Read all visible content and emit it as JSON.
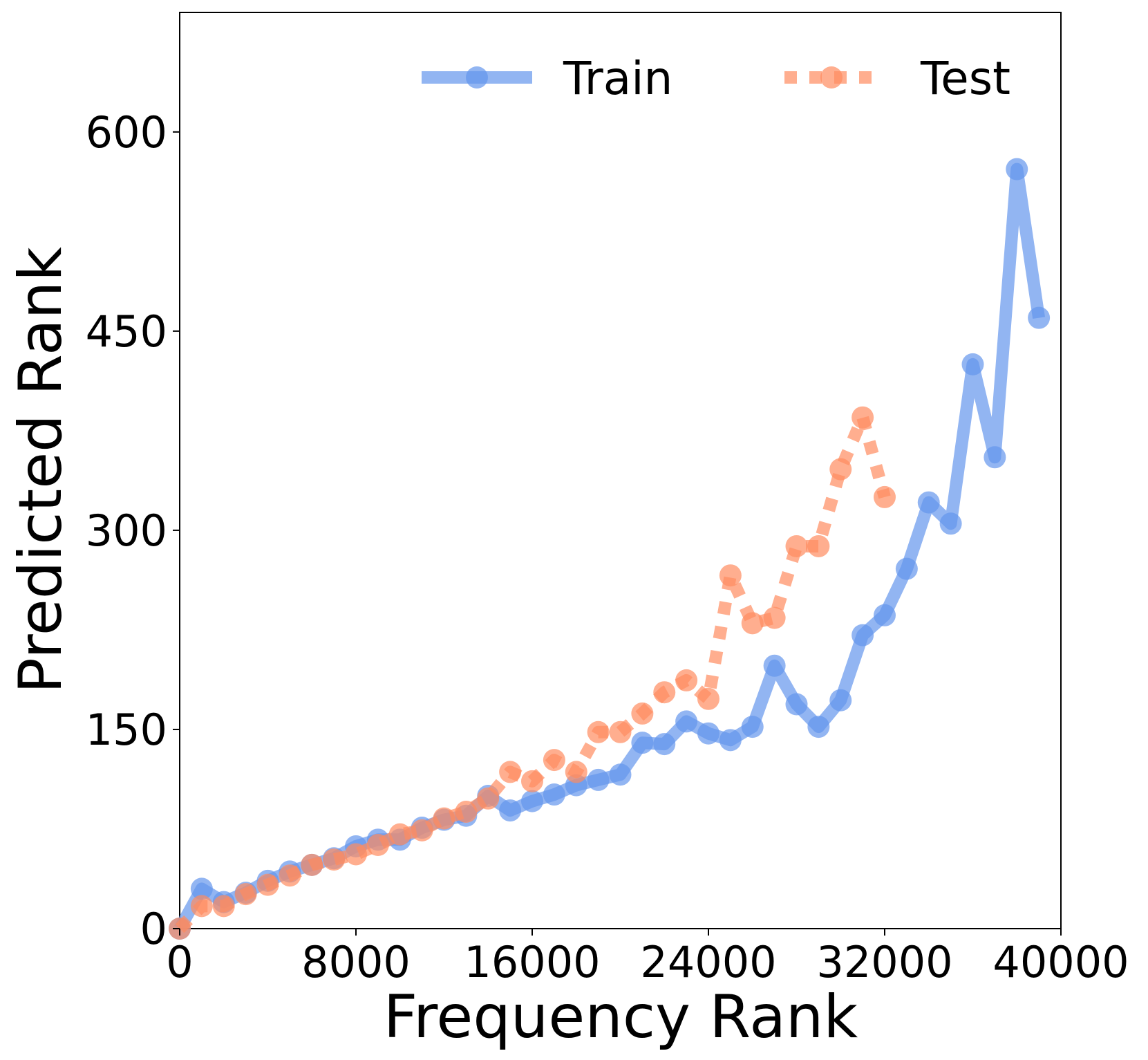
{
  "chart_data": {
    "type": "line",
    "title": "",
    "xlabel": "Frequency Rank",
    "ylabel": "Predicted Rank",
    "xlim": [
      0,
      40000
    ],
    "ylim": [
      0,
      690
    ],
    "xticks": [
      "0",
      "8000",
      "16000",
      "24000",
      "32000",
      "40000"
    ],
    "yticks": [
      "0",
      "150",
      "300",
      "450",
      "600"
    ],
    "grid": false,
    "legend_position": "top-right",
    "series": [
      {
        "name": "Train",
        "color": "#6495ED",
        "line_style": "solid",
        "marker": "circle",
        "x": [
          0,
          1000,
          2000,
          3000,
          4000,
          5000,
          6000,
          7000,
          8000,
          9000,
          10000,
          11000,
          12000,
          13000,
          14000,
          15000,
          16000,
          17000,
          18000,
          19000,
          20000,
          21000,
          22000,
          23000,
          24000,
          25000,
          26000,
          27000,
          28000,
          29000,
          30000,
          31000,
          32000,
          33000,
          34000,
          35000,
          36000,
          37000,
          38000,
          39000
        ],
        "y": [
          0,
          30,
          20,
          27,
          36,
          43,
          48,
          53,
          62,
          67,
          67,
          76,
          82,
          85,
          100,
          89,
          96,
          101,
          108,
          112,
          116,
          140,
          139,
          156,
          147,
          142,
          152,
          198,
          169,
          152,
          172,
          221,
          236,
          271,
          321,
          305,
          425,
          355,
          572,
          460
        ]
      },
      {
        "name": "Test",
        "color": "#FF8C60",
        "line_style": "dotted",
        "marker": "circle",
        "x": [
          0,
          1000,
          2000,
          3000,
          4000,
          5000,
          6000,
          7000,
          8000,
          9000,
          10000,
          11000,
          12000,
          13000,
          14000,
          15000,
          16000,
          17000,
          18000,
          19000,
          20000,
          21000,
          22000,
          23000,
          24000,
          25000,
          26000,
          27000,
          28000,
          29000,
          30000,
          31000,
          32000
        ],
        "y": [
          0,
          17,
          17,
          26,
          33,
          40,
          48,
          52,
          56,
          63,
          71,
          74,
          83,
          88,
          98,
          118,
          111,
          127,
          118,
          148,
          148,
          162,
          178,
          187,
          173,
          266,
          230,
          234,
          288,
          288,
          346,
          385,
          325
        ]
      }
    ]
  }
}
